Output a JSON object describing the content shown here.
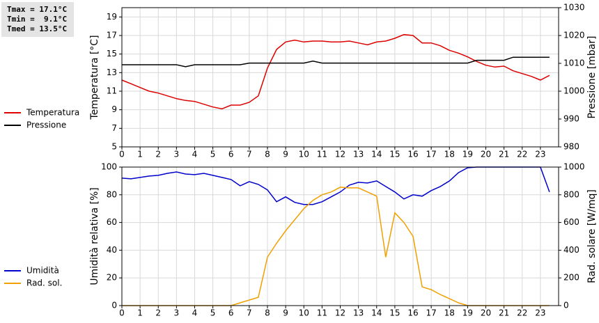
{
  "chart_data": [
    {
      "type": "line",
      "annotations": [
        "Tmax = 17.1°C",
        "Tmin =  9.1°C",
        "Tmed = 13.5°C"
      ],
      "y_label": "Temperatura [°C]",
      "y2_label": "Pressione [mbar]",
      "x": [
        0,
        0.5,
        1,
        1.5,
        2,
        2.5,
        3,
        3.5,
        4,
        4.5,
        5,
        5.5,
        6,
        6.5,
        7,
        7.5,
        8,
        8.5,
        9,
        9.5,
        10,
        10.5,
        11,
        11.5,
        12,
        12.5,
        13,
        13.5,
        14,
        14.5,
        15,
        15.5,
        16,
        16.5,
        17,
        17.5,
        18,
        18.5,
        19,
        19.5,
        20,
        20.5,
        21,
        21.5,
        22,
        22.5,
        23,
        23.5
      ],
      "xlim": [
        0,
        24
      ],
      "xticks": [
        0,
        1,
        2,
        3,
        4,
        5,
        6,
        7,
        8,
        9,
        10,
        11,
        12,
        13,
        14,
        15,
        16,
        17,
        18,
        19,
        20,
        21,
        22,
        23
      ],
      "ylim": [
        5,
        20
      ],
      "yticks": [
        5,
        7,
        9,
        11,
        13,
        15,
        17,
        19
      ],
      "y2lim": [
        980,
        1030
      ],
      "y2ticks": [
        980,
        990,
        1000,
        1010,
        1020,
        1030
      ],
      "grid": true,
      "legend": "left",
      "series": [
        {
          "name": "Temperatura",
          "color": "#dd0000",
          "values": [
            12.2,
            11.8,
            11.4,
            11.0,
            10.8,
            10.5,
            10.2,
            10.0,
            9.9,
            9.6,
            9.3,
            9.1,
            9.5,
            9.5,
            9.8,
            10.5,
            13.5,
            15.5,
            16.3,
            16.5,
            16.3,
            16.4,
            16.4,
            16.3,
            16.3,
            16.4,
            16.2,
            16.0,
            16.3,
            16.4,
            16.7,
            17.1,
            17.0,
            16.2,
            16.2,
            15.9,
            15.4,
            15.1,
            14.7,
            14.2,
            13.8,
            13.6,
            13.7,
            13.2,
            12.9,
            12.6,
            12.2,
            12.7
          ]
        },
        {
          "name": "Pressione",
          "color": "#000000",
          "axis": "y2",
          "values": [
            1009.5,
            1009.5,
            1009.5,
            1009.5,
            1009.5,
            1009.5,
            1009.5,
            1008.8,
            1009.5,
            1009.5,
            1009.5,
            1009.5,
            1009.5,
            1009.5,
            1010.1,
            1010.1,
            1010.1,
            1010.1,
            1010.1,
            1010.1,
            1010.1,
            1010.8,
            1010.1,
            1010.1,
            1010.1,
            1010.1,
            1010.1,
            1010.1,
            1010.1,
            1010.1,
            1010.1,
            1010.1,
            1010.1,
            1010.1,
            1010.1,
            1010.1,
            1010.1,
            1010.1,
            1010.1,
            1011.1,
            1011.1,
            1011.1,
            1011.1,
            1012.2,
            1012.2,
            1012.2,
            1012.2,
            1012.2
          ]
        }
      ]
    },
    {
      "type": "line",
      "y_label": "Umidità relativa [%]",
      "y2_label": "Rad. solare [W/mq]",
      "x": [
        0,
        0.5,
        1,
        1.5,
        2,
        2.5,
        3,
        3.5,
        4,
        4.5,
        5,
        5.5,
        6,
        6.5,
        7,
        7.5,
        8,
        8.5,
        9,
        9.5,
        10,
        10.5,
        11,
        11.5,
        12,
        12.5,
        13,
        13.5,
        14,
        14.5,
        15,
        15.5,
        16,
        16.5,
        17,
        17.5,
        18,
        18.5,
        19,
        19.5,
        20,
        20.5,
        21,
        21.5,
        22,
        22.5,
        23,
        23.5
      ],
      "xlim": [
        0,
        24
      ],
      "xticks": [
        0,
        1,
        2,
        3,
        4,
        5,
        6,
        7,
        8,
        9,
        10,
        11,
        12,
        13,
        14,
        15,
        16,
        17,
        18,
        19,
        20,
        21,
        22,
        23
      ],
      "ylim": [
        0,
        100
      ],
      "yticks": [
        0,
        20,
        40,
        60,
        80,
        100
      ],
      "y2lim": [
        0,
        1000
      ],
      "y2ticks": [
        0,
        200,
        400,
        600,
        800,
        1000
      ],
      "grid": true,
      "legend": "left",
      "series": [
        {
          "name": "Umidità",
          "color": "#0000cc",
          "values": [
            92,
            91.5,
            92.5,
            93.5,
            94,
            95.5,
            96.5,
            95,
            94.5,
            95.5,
            94,
            92.5,
            91,
            86.5,
            89.5,
            87.5,
            83.5,
            75,
            78.5,
            74.5,
            73,
            73,
            75,
            78.5,
            82,
            87,
            89,
            88.5,
            90,
            86,
            82,
            77,
            80,
            79,
            83,
            86,
            90,
            96,
            99.5,
            100,
            100,
            100,
            100,
            100,
            100,
            100,
            100,
            82
          ]
        },
        {
          "name": "Rad. sol.",
          "color": "#f0a000",
          "axis": "y2",
          "values": [
            0,
            0,
            0,
            0,
            0,
            0,
            0,
            0,
            0,
            0,
            0,
            0,
            0,
            20,
            40,
            60,
            350,
            450,
            540,
            620,
            700,
            760,
            800,
            820,
            855,
            850,
            850,
            820,
            790,
            350,
            670,
            600,
            500,
            135,
            115,
            80,
            50,
            20,
            0,
            0,
            0,
            0,
            0,
            0,
            0,
            0,
            0,
            0
          ]
        }
      ]
    }
  ]
}
